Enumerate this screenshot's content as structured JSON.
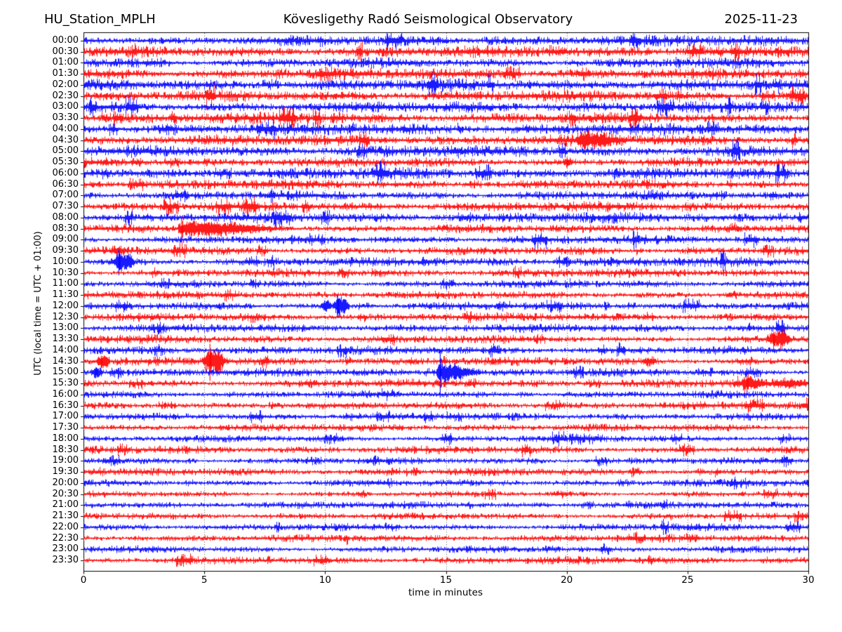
{
  "header": {
    "station": "HU_Station_MPLH",
    "title": "Kövesligethy Radó Seismological Observatory",
    "date": "2025-11-23"
  },
  "chart_data": {
    "type": "line",
    "subtype": "helicorder-dayplot",
    "title": "Kövesligethy Radó Seismological Observatory",
    "station": "HU_Station_MPLH",
    "date": "2025-11-23",
    "xlabel": "time in minutes",
    "ylabel": "UTC (local time = UTC + 01:00)",
    "xlim": [
      0,
      30
    ],
    "x_ticks": [
      "0",
      "5",
      "10",
      "15",
      "20",
      "25",
      "30"
    ],
    "grid_minutes": [
      5,
      10,
      15,
      20,
      25
    ],
    "grid_style": "dotted-vertical",
    "minutes_per_row": 30,
    "trace_colors": {
      "even_rows": "#0000ff",
      "odd_rows": "#ff0000"
    },
    "rows": [
      {
        "label": "00:00",
        "color": "#0000ff",
        "amp": 3.4
      },
      {
        "label": "00:30",
        "color": "#ff0000",
        "amp": 3.4
      },
      {
        "label": "01:00",
        "color": "#0000ff",
        "amp": 3.4
      },
      {
        "label": "01:30",
        "color": "#ff0000",
        "amp": 3.2
      },
      {
        "label": "02:00",
        "color": "#0000ff",
        "amp": 3.4
      },
      {
        "label": "02:30",
        "color": "#ff0000",
        "amp": 3.3
      },
      {
        "label": "03:00",
        "color": "#0000ff",
        "amp": 3.2
      },
      {
        "label": "03:30",
        "color": "#ff0000",
        "amp": 3.2
      },
      {
        "label": "04:00",
        "color": "#0000ff",
        "amp": 3.4
      },
      {
        "label": "04:30",
        "color": "#ff0000",
        "amp": 3.2
      },
      {
        "label": "05:00",
        "color": "#0000ff",
        "amp": 3.3
      },
      {
        "label": "05:30",
        "color": "#ff0000",
        "amp": 3.1
      },
      {
        "label": "06:00",
        "color": "#0000ff",
        "amp": 3.3
      },
      {
        "label": "06:30",
        "color": "#ff0000",
        "amp": 3.1
      },
      {
        "label": "07:00",
        "color": "#0000ff",
        "amp": 3.1
      },
      {
        "label": "07:30",
        "color": "#ff0000",
        "amp": 3.0
      },
      {
        "label": "08:00",
        "color": "#0000ff",
        "amp": 3.0
      },
      {
        "label": "08:30",
        "color": "#ff0000",
        "amp": 2.9
      },
      {
        "label": "09:00",
        "color": "#0000ff",
        "amp": 2.9
      },
      {
        "label": "09:30",
        "color": "#ff0000",
        "amp": 2.9
      },
      {
        "label": "10:00",
        "color": "#0000ff",
        "amp": 2.8
      },
      {
        "label": "10:30",
        "color": "#ff0000",
        "amp": 2.8
      },
      {
        "label": "11:00",
        "color": "#0000ff",
        "amp": 2.6
      },
      {
        "label": "11:30",
        "color": "#ff0000",
        "amp": 2.5
      },
      {
        "label": "12:00",
        "color": "#0000ff",
        "amp": 2.6
      },
      {
        "label": "12:30",
        "color": "#ff0000",
        "amp": 2.5
      },
      {
        "label": "13:00",
        "color": "#0000ff",
        "amp": 2.5
      },
      {
        "label": "13:30",
        "color": "#ff0000",
        "amp": 2.6
      },
      {
        "label": "14:00",
        "color": "#0000ff",
        "amp": 2.5
      },
      {
        "label": "14:30",
        "color": "#ff0000",
        "amp": 2.5
      },
      {
        "label": "15:00",
        "color": "#0000ff",
        "amp": 2.6
      },
      {
        "label": "15:30",
        "color": "#ff0000",
        "amp": 2.5
      },
      {
        "label": "16:00",
        "color": "#0000ff",
        "amp": 2.5
      },
      {
        "label": "16:30",
        "color": "#ff0000",
        "amp": 2.3
      },
      {
        "label": "17:00",
        "color": "#0000ff",
        "amp": 2.2
      },
      {
        "label": "17:30",
        "color": "#ff0000",
        "amp": 2.2
      },
      {
        "label": "18:00",
        "color": "#0000ff",
        "amp": 2.4
      },
      {
        "label": "18:30",
        "color": "#ff0000",
        "amp": 2.3
      },
      {
        "label": "19:00",
        "color": "#0000ff",
        "amp": 2.3
      },
      {
        "label": "19:30",
        "color": "#ff0000",
        "amp": 2.2
      },
      {
        "label": "20:00",
        "color": "#0000ff",
        "amp": 2.2
      },
      {
        "label": "20:30",
        "color": "#ff0000",
        "amp": 2.1
      },
      {
        "label": "21:00",
        "color": "#0000ff",
        "amp": 2.1
      },
      {
        "label": "21:30",
        "color": "#ff0000",
        "amp": 2.1
      },
      {
        "label": "22:00",
        "color": "#0000ff",
        "amp": 2.4
      },
      {
        "label": "22:30",
        "color": "#ff0000",
        "amp": 2.2
      },
      {
        "label": "23:00",
        "color": "#0000ff",
        "amp": 2.4
      },
      {
        "label": "23:30",
        "color": "#ff0000",
        "amp": 2.3
      }
    ],
    "events": [
      {
        "row": 9,
        "row_label": "04:30",
        "start_min": 20.4,
        "end_min": 22.7,
        "peak_amp": 7.5,
        "shape": "decay"
      },
      {
        "row": 11,
        "row_label": "05:30",
        "start_min": 19.85,
        "end_min": 20.25,
        "peak_amp": 4.0,
        "shape": "sym",
        "spike": 8,
        "spike_at": 20.0
      },
      {
        "row": 17,
        "row_label": "08:30",
        "start_min": 3.9,
        "end_min": 8.8,
        "peak_amp": 8.0,
        "shape": "decay",
        "spike": 20,
        "spike_at": 4.05
      },
      {
        "row": 19,
        "row_label": "09:30",
        "start_min": 1.15,
        "end_min": 1.7,
        "peak_amp": 3.5,
        "shape": "sym"
      },
      {
        "row": 20,
        "row_label": "10:00",
        "start_min": 1.2,
        "end_min": 2.1,
        "peak_amp": 11.0,
        "shape": "sym",
        "spike": 19,
        "spike_at": 1.45
      },
      {
        "row": 24,
        "row_label": "12:00",
        "start_min": 9.8,
        "end_min": 10.3,
        "peak_amp": 7.0,
        "shape": "sym"
      },
      {
        "row": 24,
        "row_label": "12:00",
        "start_min": 10.3,
        "end_min": 11.0,
        "peak_amp": 11.0,
        "shape": "sym",
        "spike": 17,
        "spike_at": 10.5
      },
      {
        "row": 27,
        "row_label": "13:30",
        "start_min": 28.25,
        "end_min": 29.3,
        "peak_amp": 9.0,
        "shape": "sym",
        "spike": 11,
        "spike_at": 28.55
      },
      {
        "row": 29,
        "row_label": "14:30",
        "start_min": 0.5,
        "end_min": 1.1,
        "peak_amp": 7.0,
        "shape": "sym",
        "spike": 9,
        "spike_at": 0.72
      },
      {
        "row": 29,
        "row_label": "14:30",
        "start_min": 4.9,
        "end_min": 5.85,
        "peak_amp": 14.0,
        "shape": "sym",
        "spike": 28,
        "spike_at": 5.22
      },
      {
        "row": 29,
        "row_label": "14:30",
        "start_min": 23.1,
        "end_min": 23.7,
        "peak_amp": 4.5,
        "shape": "sym"
      },
      {
        "row": 30,
        "row_label": "15:00",
        "start_min": 0.3,
        "end_min": 0.8,
        "peak_amp": 6.0,
        "shape": "sym",
        "spike": 8,
        "spike_at": 0.5
      },
      {
        "row": 30,
        "row_label": "15:00",
        "start_min": 14.6,
        "end_min": 16.6,
        "peak_amp": 12.0,
        "shape": "decay",
        "spike": 36,
        "spike_at": 14.75
      },
      {
        "row": 31,
        "row_label": "15:30",
        "start_min": 27.25,
        "end_min": 28.4,
        "peak_amp": 8.0,
        "shape": "decay",
        "spike": 12,
        "spike_at": 27.45
      },
      {
        "row": 31,
        "row_label": "15:30",
        "start_min": 28.4,
        "end_min": 30.0,
        "peak_amp": 3.5,
        "shape": "sym"
      }
    ]
  }
}
